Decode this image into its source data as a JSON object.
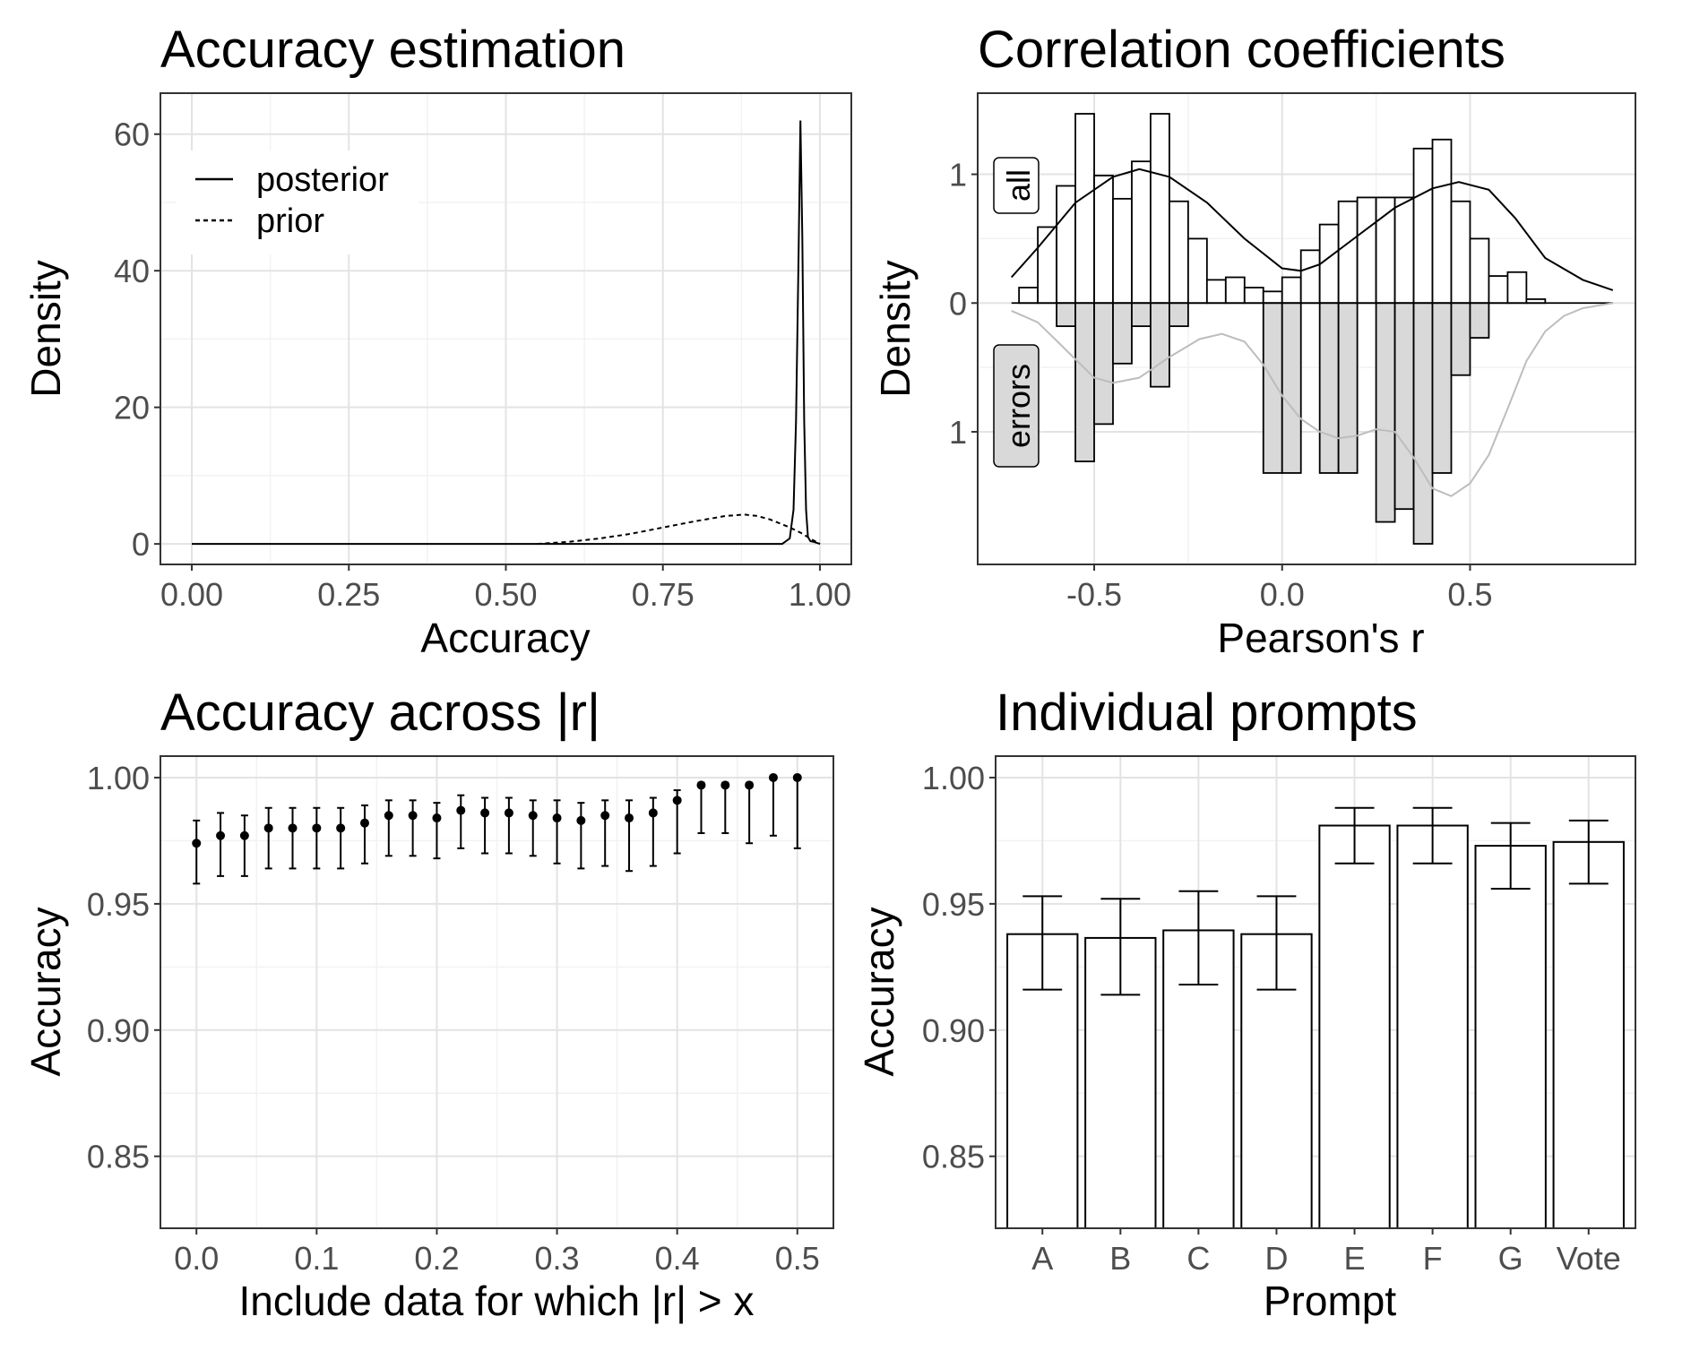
{
  "chart_data": [
    {
      "id": "p1",
      "type": "line",
      "title": "Accuracy estimation",
      "xlabel": "Accuracy",
      "ylabel": "Density",
      "xlim": [
        -0.05,
        1.05
      ],
      "ylim": [
        -3,
        66
      ],
      "x_ticks": [
        "0.00",
        "0.25",
        "0.50",
        "0.75",
        "1.00"
      ],
      "x_tick_values": [
        0,
        0.25,
        0.5,
        0.75,
        1.0
      ],
      "y_ticks": [
        "0",
        "20",
        "40",
        "60"
      ],
      "y_tick_values": [
        0,
        20,
        40,
        60
      ],
      "grid": true,
      "legend_position": "top-left",
      "legend": [
        "posterior",
        "prior"
      ],
      "series": [
        {
          "name": "posterior",
          "style": "solid",
          "x": [
            0,
            0.5,
            0.94,
            0.952,
            0.958,
            0.962,
            0.966,
            0.969,
            0.972,
            0.975,
            0.978,
            0.981,
            0.985,
            0.99,
            1.0
          ],
          "y": [
            0,
            0,
            0,
            0.8,
            5,
            18,
            42,
            62,
            45,
            18,
            5,
            1,
            0.4,
            0.3,
            0
          ]
        },
        {
          "name": "prior",
          "style": "dashed",
          "x": [
            0.55,
            0.6,
            0.65,
            0.7,
            0.75,
            0.8,
            0.85,
            0.88,
            0.9,
            0.92,
            0.95,
            0.97,
            0.99,
            1.0
          ],
          "y": [
            0,
            0.3,
            0.8,
            1.5,
            2.4,
            3.3,
            4.1,
            4.3,
            4.1,
            3.6,
            2.5,
            1.6,
            0.5,
            0
          ]
        }
      ]
    },
    {
      "id": "p2",
      "type": "bar",
      "title": "Correlation coefficients",
      "xlabel": "Pearson's r",
      "ylabel": "Density",
      "xlim": [
        -0.81,
        0.94
      ],
      "ylim": [
        -2.03,
        1.63
      ],
      "x_ticks": [
        "-0.5",
        "0.0",
        "0.5"
      ],
      "x_tick_values": [
        -0.5,
        0,
        0.5
      ],
      "y_ticks": [
        "1",
        "0",
        "1"
      ],
      "y_tick_values": [
        1,
        0,
        -1
      ],
      "grid": true,
      "panels": [
        "all",
        "errors"
      ],
      "bin_width": 0.05,
      "bins_start": -0.7,
      "all_heights": [
        0.12,
        0.59,
        0.91,
        1.47,
        0.99,
        0.81,
        1.1,
        1.47,
        0.79,
        0.5,
        0.18,
        0.2,
        0.12,
        0.09,
        0.2,
        0.41,
        0.61,
        0.79,
        0.82,
        0.82,
        0.82,
        1.2,
        1.27,
        0.79,
        0.5,
        0.21,
        0.24,
        0.03
      ],
      "errors_heights": [
        0,
        0,
        0.18,
        1.23,
        0.94,
        0.47,
        0.18,
        0.65,
        0.18,
        0,
        0,
        0,
        0,
        1.32,
        1.32,
        0,
        1.32,
        1.32,
        0,
        1.7,
        1.6,
        1.87,
        1.32,
        0.56,
        0.27,
        0,
        0,
        0
      ],
      "all_density": {
        "x": [
          -0.72,
          -0.65,
          -0.55,
          -0.45,
          -0.38,
          -0.3,
          -0.2,
          -0.1,
          0,
          0.05,
          0.1,
          0.2,
          0.3,
          0.4,
          0.47,
          0.55,
          0.62,
          0.7,
          0.8,
          0.88
        ],
        "y": [
          0.2,
          0.43,
          0.78,
          0.98,
          1.04,
          0.98,
          0.78,
          0.5,
          0.27,
          0.25,
          0.3,
          0.52,
          0.74,
          0.89,
          0.94,
          0.88,
          0.66,
          0.35,
          0.18,
          0.1
        ]
      },
      "errors_density": {
        "x": [
          -0.72,
          -0.65,
          -0.58,
          -0.5,
          -0.45,
          -0.38,
          -0.3,
          -0.22,
          -0.16,
          -0.1,
          -0.05,
          0,
          0.05,
          0.1,
          0.15,
          0.2,
          0.25,
          0.3,
          0.35,
          0.4,
          0.45,
          0.5,
          0.55,
          0.6,
          0.65,
          0.7,
          0.75,
          0.8,
          0.88
        ],
        "y": [
          -0.06,
          -0.15,
          -0.35,
          -0.58,
          -0.62,
          -0.58,
          -0.42,
          -0.28,
          -0.24,
          -0.3,
          -0.48,
          -0.72,
          -0.9,
          -1.0,
          -1.05,
          -1.03,
          -0.98,
          -1.0,
          -1.2,
          -1.44,
          -1.5,
          -1.4,
          -1.18,
          -0.82,
          -0.45,
          -0.22,
          -0.1,
          -0.04,
          0
        ]
      }
    },
    {
      "id": "p3",
      "type": "scatter",
      "title": "Accuracy across |r|",
      "xlabel": "Include data for which |r| > x",
      "ylabel": "Accuracy",
      "xlim": [
        -0.03,
        0.53
      ],
      "ylim": [
        0.8215,
        1.0085
      ],
      "x_ticks": [
        "0.0",
        "0.1",
        "0.2",
        "0.3",
        "0.4",
        "0.5"
      ],
      "x_tick_values": [
        0,
        0.1,
        0.2,
        0.3,
        0.4,
        0.5
      ],
      "y_ticks": [
        "0.85",
        "0.90",
        "0.95",
        "1.00"
      ],
      "y_tick_values": [
        0.85,
        0.9,
        0.95,
        1.0
      ],
      "grid": true,
      "x": [
        0,
        0.02,
        0.04,
        0.06,
        0.08,
        0.1,
        0.12,
        0.14,
        0.16,
        0.18,
        0.2,
        0.22,
        0.24,
        0.26,
        0.28,
        0.3,
        0.32,
        0.34,
        0.36,
        0.38,
        0.4,
        0.42,
        0.44,
        0.46,
        0.48,
        0.5
      ],
      "y": [
        0.974,
        0.977,
        0.977,
        0.98,
        0.98,
        0.98,
        0.98,
        0.982,
        0.985,
        0.985,
        0.984,
        0.987,
        0.986,
        0.986,
        0.985,
        0.984,
        0.983,
        0.985,
        0.984,
        0.986,
        0.991,
        0.997,
        0.997,
        0.997,
        1.0,
        1.0
      ],
      "lower": [
        0.958,
        0.961,
        0.961,
        0.964,
        0.964,
        0.964,
        0.964,
        0.966,
        0.969,
        0.969,
        0.968,
        0.972,
        0.97,
        0.97,
        0.969,
        0.966,
        0.964,
        0.965,
        0.963,
        0.965,
        0.97,
        0.978,
        0.978,
        0.974,
        0.977,
        0.972
      ],
      "upper": [
        0.983,
        0.986,
        0.985,
        0.988,
        0.988,
        0.988,
        0.988,
        0.989,
        0.991,
        0.991,
        0.99,
        0.993,
        0.992,
        0.992,
        0.991,
        0.991,
        0.99,
        0.991,
        0.991,
        0.992,
        0.995,
        0.998,
        0.998,
        0.998,
        1.0,
        1.0
      ]
    },
    {
      "id": "p4",
      "type": "bar",
      "title": "Individual prompts",
      "xlabel": "Prompt",
      "ylabel": "Accuracy",
      "ylim": [
        0.8215,
        1.0085
      ],
      "y_ticks": [
        "0.85",
        "0.90",
        "0.95",
        "1.00"
      ],
      "y_tick_values": [
        0.85,
        0.9,
        0.95,
        1.0
      ],
      "grid": true,
      "categories": [
        "A",
        "B",
        "C",
        "D",
        "E",
        "F",
        "G",
        "Vote"
      ],
      "values": [
        0.938,
        0.9365,
        0.9395,
        0.938,
        0.981,
        0.981,
        0.973,
        0.9745
      ],
      "lower": [
        0.916,
        0.914,
        0.918,
        0.916,
        0.966,
        0.966,
        0.956,
        0.958
      ],
      "upper": [
        0.953,
        0.952,
        0.955,
        0.953,
        0.988,
        0.988,
        0.982,
        0.983
      ]
    }
  ]
}
